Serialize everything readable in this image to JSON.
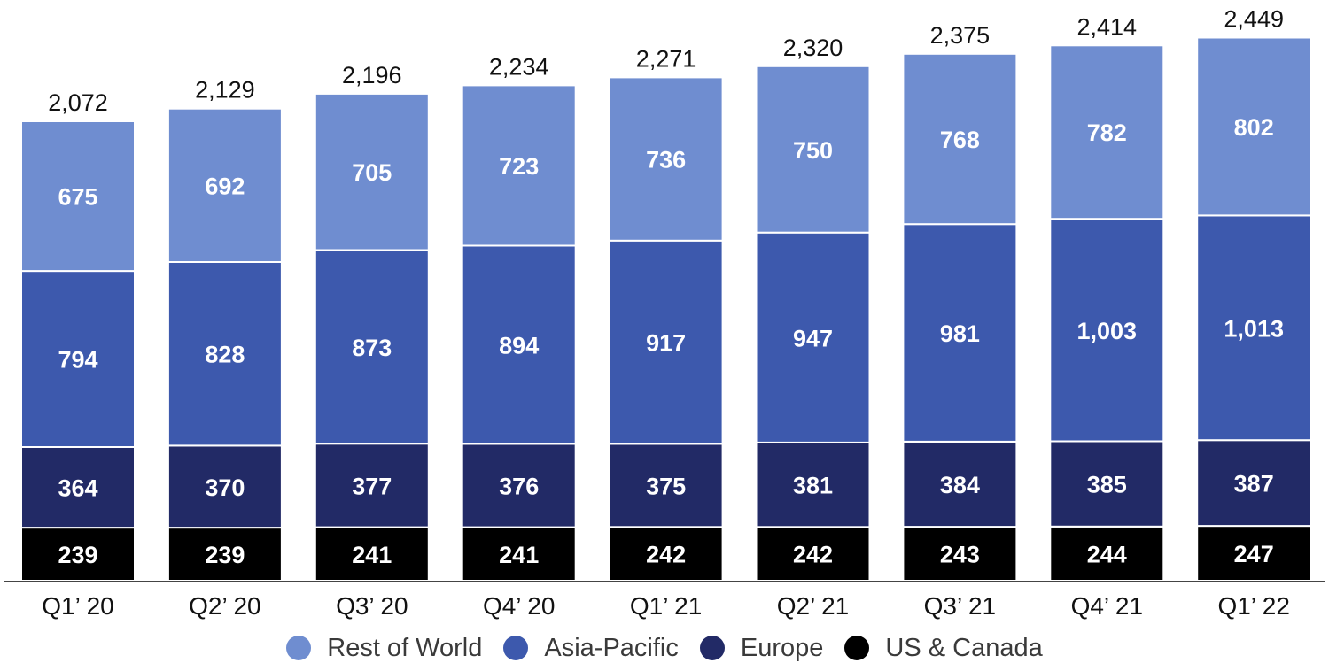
{
  "chart_data": {
    "type": "bar",
    "stacked": true,
    "title": "",
    "xlabel": "",
    "ylabel": "",
    "categories": [
      "Q1’ 20",
      "Q2’ 20",
      "Q3’ 20",
      "Q4’ 20",
      "Q1’ 21",
      "Q2’ 21",
      "Q3’ 21",
      "Q4’ 21",
      "Q1’ 22"
    ],
    "series": [
      {
        "name": "US & Canada",
        "color": "#000000",
        "values": [
          239,
          239,
          241,
          241,
          242,
          242,
          243,
          244,
          247
        ],
        "labels": [
          "239",
          "239",
          "241",
          "241",
          "242",
          "242",
          "243",
          "244",
          "247"
        ]
      },
      {
        "name": "Europe",
        "color": "#222a66",
        "values": [
          364,
          370,
          377,
          376,
          375,
          381,
          384,
          385,
          387
        ],
        "labels": [
          "364",
          "370",
          "377",
          "376",
          "375",
          "381",
          "384",
          "385",
          "387"
        ]
      },
      {
        "name": "Asia-Pacific",
        "color": "#3d59ad",
        "values": [
          794,
          828,
          873,
          894,
          917,
          947,
          981,
          1003,
          1013
        ],
        "labels": [
          "794",
          "828",
          "873",
          "894",
          "917",
          "947",
          "981",
          "1,003",
          "1,013"
        ]
      },
      {
        "name": "Rest of World",
        "color": "#6f8dd0",
        "values": [
          675,
          692,
          705,
          723,
          736,
          750,
          768,
          782,
          802
        ],
        "labels": [
          "675",
          "692",
          "705",
          "723",
          "736",
          "750",
          "768",
          "782",
          "802"
        ]
      }
    ],
    "totals": [
      2072,
      2129,
      2196,
      2234,
      2271,
      2320,
      2375,
      2414,
      2449
    ],
    "total_labels": [
      "2,072",
      "2,129",
      "2,196",
      "2,234",
      "2,271",
      "2,320",
      "2,375",
      "2,414",
      "2,449"
    ],
    "legend": [
      "Rest of World",
      "Asia-Pacific",
      "Europe",
      "US & Canada"
    ],
    "legend_position": "bottom",
    "grid": false
  }
}
